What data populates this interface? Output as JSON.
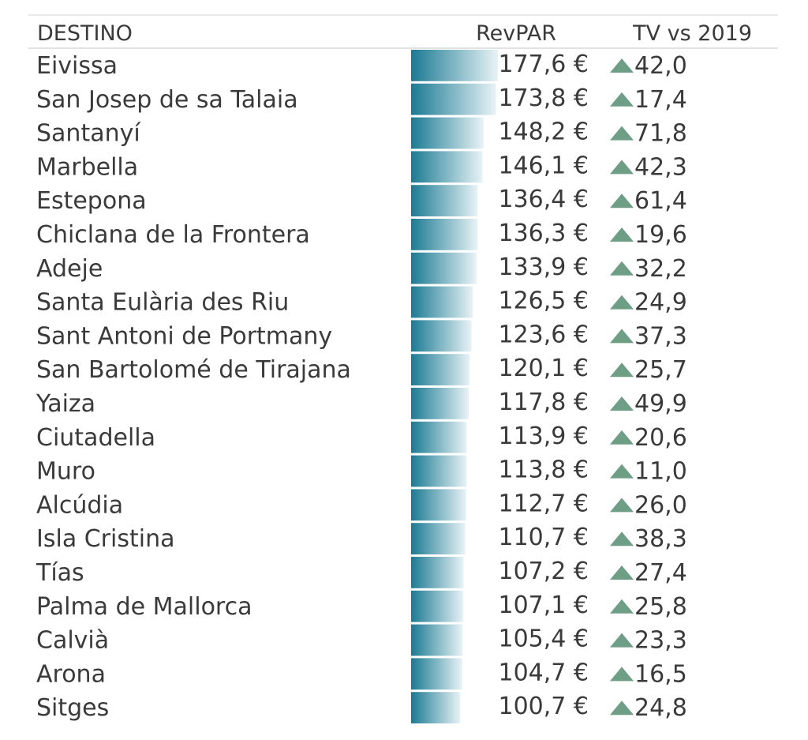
{
  "chart_data": {
    "type": "table",
    "columns": [
      "DESTINO",
      "RevPAR",
      "TV vs 2019"
    ],
    "value_suffix": " €",
    "colors": {
      "bar_dark": "#1b7a93",
      "bar_light": "#e8f3f6",
      "triangle": "#6f9e86",
      "header_line": "#d9d9d9",
      "text": "#3a3a3a"
    },
    "rows": [
      {
        "destino": "Eivissa",
        "revpar": "177,6",
        "value": 177.6,
        "tv": "42,0"
      },
      {
        "destino": "San Josep de sa Talaia",
        "revpar": "173,8",
        "value": 173.8,
        "tv": "17,4"
      },
      {
        "destino": "Santanyí",
        "revpar": "148,2",
        "value": 148.2,
        "tv": "71,8"
      },
      {
        "destino": "Marbella",
        "revpar": "146,1",
        "value": 146.1,
        "tv": "42,3"
      },
      {
        "destino": "Estepona",
        "revpar": "136,4",
        "value": 136.4,
        "tv": "61,4"
      },
      {
        "destino": "Chiclana de la Frontera",
        "revpar": "136,3",
        "value": 136.3,
        "tv": "19,6"
      },
      {
        "destino": "Adeje",
        "revpar": "133,9",
        "value": 133.9,
        "tv": "32,2"
      },
      {
        "destino": "Santa Eulària des Riu",
        "revpar": "126,5",
        "value": 126.5,
        "tv": "24,9"
      },
      {
        "destino": "Sant Antoni de Portmany",
        "revpar": "123,6",
        "value": 123.6,
        "tv": "37,3"
      },
      {
        "destino": "San Bartolomé de Tirajana",
        "revpar": "120,1",
        "value": 120.1,
        "tv": "25,7"
      },
      {
        "destino": "Yaiza",
        "revpar": "117,8",
        "value": 117.8,
        "tv": "49,9"
      },
      {
        "destino": "Ciutadella",
        "revpar": "113,9",
        "value": 113.9,
        "tv": "20,6"
      },
      {
        "destino": "Muro",
        "revpar": "113,8",
        "value": 113.8,
        "tv": "11,0"
      },
      {
        "destino": "Alcúdia",
        "revpar": "112,7",
        "value": 112.7,
        "tv": "26,0"
      },
      {
        "destino": "Isla Cristina",
        "revpar": "110,7",
        "value": 110.7,
        "tv": "38,3"
      },
      {
        "destino": "Tías",
        "revpar": "107,2",
        "value": 107.2,
        "tv": "27,4"
      },
      {
        "destino": "Palma de Mallorca",
        "revpar": "107,1",
        "value": 107.1,
        "tv": "25,8"
      },
      {
        "destino": "Calvià",
        "revpar": "105,4",
        "value": 105.4,
        "tv": "23,3"
      },
      {
        "destino": "Arona",
        "revpar": "104,7",
        "value": 104.7,
        "tv": "16,5"
      },
      {
        "destino": "Sitges",
        "revpar": "100,7",
        "value": 100.7,
        "tv": "24,8"
      }
    ]
  }
}
